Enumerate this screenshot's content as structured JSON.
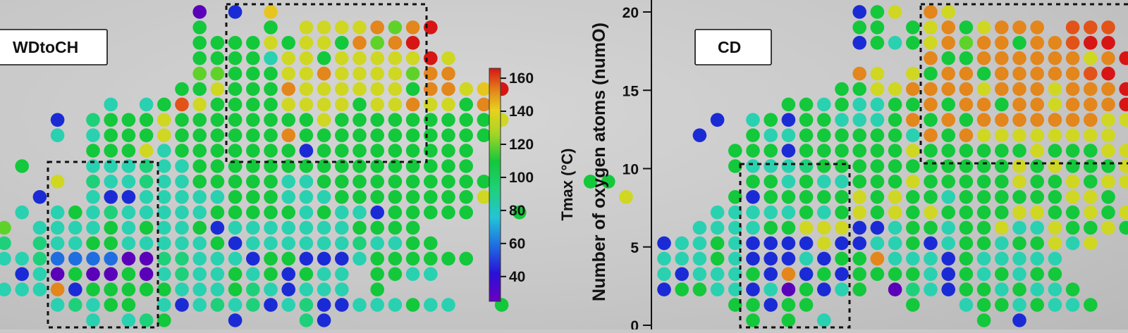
{
  "chart_data": [
    {
      "type": "scatter",
      "label": "WDtoCH",
      "color_value_label": "Tmax",
      "points_note": "colored dot grid, colour = Tmax (°C)",
      "marker_grid": {
        "cols": 27,
        "rows": 21
      },
      "color_levels": {
        "V": 30,
        "B": 42,
        "M": 52,
        "S": 62,
        "T": 74,
        "C": 86,
        "G": 100,
        "L": 108,
        "Y": 124,
        "K": 130,
        "O": 140,
        "R": 152,
        "E": 164
      },
      "rows": [
        "...........V.B.K..........",
        "...........G...G.YYYYOLOE..",
        "...........GGGGYGYYGOLOE...",
        "...........GGGGTYYGYYYYYEY.",
        "...........LLGGGYYOYYYYLOO..",
        "..........GGYGGGOYYYYYYGOOYKE",
        "......T.TGRYGGGGYYYYGYYOYYGO",
        "...B.CGGGYGGGGGGGGYGGGGGGGGGY",
        "...T.TGGGYGGGGGGOGGGGGGGGGGG",
        ".....GGGYTGGGGGGGBGGGGGGGGG.",
        ".G...TTTCTTGGGGGGGGGGGGGGGG.",
        "...Y.CTTCTTGGGGGTTGGGGGGGGGG.....GG",
        "..B..TBBTTTTTGGGTTTGGGGGGGGY.......Y",
        ".T.TGTCTTTTTGGGGGTGTTBGGGGG..G",
        "L.TTTTGTGTTGBTTTTTTTGGGG.",
        "C.CTTGGTTTTTGBTTTTTTCTTGG",
        "TTCMMMMVVCCTTTBGGBBBTGGGGGG",
        ".BTVGVVGVTCTTGTGBGTT.GGTT",
        "TTTOBGGGGGTTTGCTBTTT.G",
        "...TCTGG.TBTCTCBTCBBTTTGTT..G",
        ".....T.TCG...B...CB"
      ],
      "yaxis": {
        "title": "",
        "ticks": []
      }
    },
    {
      "type": "scatter",
      "label": "CD",
      "color_value_label": "Tmax",
      "points_note": "colored dot grid, colour = Tmax (°C)",
      "marker_grid": {
        "cols": 27,
        "rows": 21
      },
      "color_levels": {
        "V": 30,
        "B": 42,
        "M": 52,
        "S": 62,
        "T": 74,
        "C": 86,
        "G": 100,
        "L": 108,
        "Y": 124,
        "K": 130,
        "O": 140,
        "R": 152,
        "E": 164
      },
      "rows": [
        "...........BGY.OY..............",
        "...........GG.GYOGYOOO.RRR.....",
        "...........BGTGYOLOOGOOREE.....",
        "...............OGGOOOOOOYOE....",
        "...........OY.YGOOGOOOOORE.....",
        "..........GGYYOOOOYOOOYOOOEEOO.",
        ".......GGTGTTGGOGOOGOOYOOOEEO.O",
        "...B.TGBGGTTTGOGOGOOOOOOOYYYO",
        "..B..GTTGGGGGGTOGOYYYYYYYY.Y",
        "....GGGBGGGGGGYGGGGGGYGGGYY.",
        "....GTTTCGGGGGGGGGGGYGYGGGY.Y",
        ".....GGTGTTGGGYGGGGGYGGYGYY",
        "....GBGGGGGYGYGGTGGGGGGYYG",
        "...TTTTTGTGYGYGYGGGGYYGGYGY..G",
        "..TTTTGGYYYBBTGGTGGYTTYGGYG",
        "BTTGTBBBBYBBTTGBTGGTGGYTY",
        "TTTGTBBBTBGGOTTTBGTTTTT",
        "TBTTTGBOBGBGGGGTBGTGTGG",
        "BGGTTBTVGBTG.VCTBGGTGTTG.....T",
        "....GGBGG.....G..TGGTGTTG",
        ".....G.G.T........G.B..."
      ],
      "yaxis": {
        "title": "Number of oxygen atoms (numO)",
        "ticks": [
          "0",
          "5",
          "10",
          "15",
          "20"
        ]
      }
    }
  ],
  "colorbar": {
    "title": "Tmax (°C)",
    "ticks": [
      "40",
      "60",
      "80",
      "100",
      "120",
      "140",
      "160"
    ],
    "min": 25,
    "max": 166
  },
  "palette": [
    "#5a00b8",
    "#1a2bd6",
    "#1f6ee0",
    "#23b8d6",
    "#29d1b0",
    "#1fd07a",
    "#13c83b",
    "#5fd22a",
    "#cfd722",
    "#e6c61e",
    "#e3861c",
    "#e25319",
    "#d81515"
  ]
}
